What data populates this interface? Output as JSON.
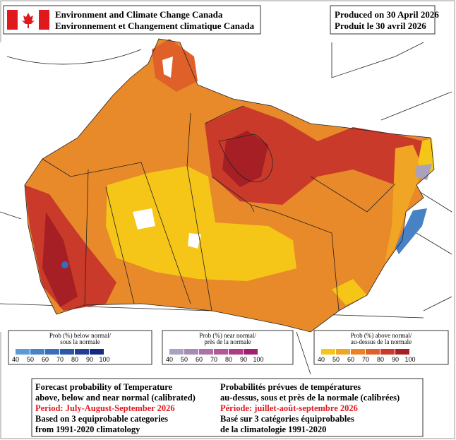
{
  "header": {
    "agency_en": "Environment and Climate Change Canada",
    "agency_fr": "Environnement et Changement climatique Canada",
    "produced_en": "Produced on 30 April 2026",
    "produced_fr": "Produit le 30 avril 2026"
  },
  "legends": [
    {
      "title_en": "Prob (%) below normal/",
      "title_fr": "sous la normale",
      "ticks": [
        40,
        50,
        60,
        70,
        80,
        90,
        100
      ],
      "colors": [
        "#5b9bd5",
        "#4682c4",
        "#3a6cb8",
        "#2e56a8",
        "#213f98",
        "#142a80"
      ]
    },
    {
      "title_en": "Prob (%) near normal/",
      "title_fr": "près de la normale",
      "ticks": [
        40,
        50,
        60,
        70,
        80,
        90,
        100
      ],
      "colors": [
        "#aaa2bc",
        "#a68cb4",
        "#ad72a6",
        "#b35894",
        "#ae3c84",
        "#a01f70"
      ]
    },
    {
      "title_en": "Prob (%) above normal/",
      "title_fr": "au-dessus de la normale",
      "ticks": [
        40,
        50,
        60,
        70,
        80,
        90,
        100
      ],
      "colors": [
        "#f5c518",
        "#f0a524",
        "#e98328",
        "#e0602a",
        "#c93a2a",
        "#a61f24"
      ]
    }
  ],
  "footer": {
    "left": {
      "line1": "Forecast probability of Temperature",
      "line2": "above, below and near normal (calibrated)",
      "period": "Period: July-August-September 2026",
      "line4": "Based on 3 equiprobable categories",
      "line5": "from 1991-2020 climatology"
    },
    "right": {
      "line1": "Probabilités prévues de températures",
      "line2": "au-dessus, sous et près de la normale (calibrées)",
      "period": "Période: juillet-août-septembre 2026",
      "line4": "Basé sur 3 catégories équiprobables",
      "line5": "de la climatologie 1991-2020"
    }
  }
}
